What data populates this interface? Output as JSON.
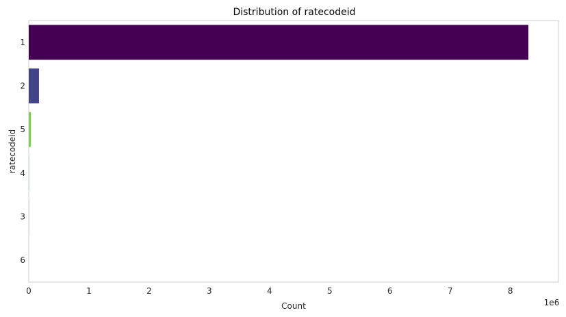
{
  "chart_data": {
    "type": "bar",
    "orientation": "horizontal",
    "title": "Distribution of ratecodeid",
    "xlabel": "Count",
    "ylabel": "ratecodeid",
    "x_offset_label": "1e6",
    "categories": [
      "1",
      "2",
      "5",
      "4",
      "3",
      "6"
    ],
    "values": [
      8300000,
      170000,
      35000,
      3000,
      1500,
      100
    ],
    "colors": [
      "#440154",
      "#414487",
      "#7ad151",
      "#22a884",
      "#2a788e",
      "#fde725"
    ],
    "xlim": [
      0,
      8800000
    ],
    "x_ticks": [
      0,
      1000000,
      2000000,
      3000000,
      4000000,
      5000000,
      6000000,
      7000000,
      8000000
    ],
    "x_tick_labels": [
      "0",
      "1",
      "2",
      "3",
      "4",
      "5",
      "6",
      "7",
      "8"
    ],
    "grid": false
  }
}
